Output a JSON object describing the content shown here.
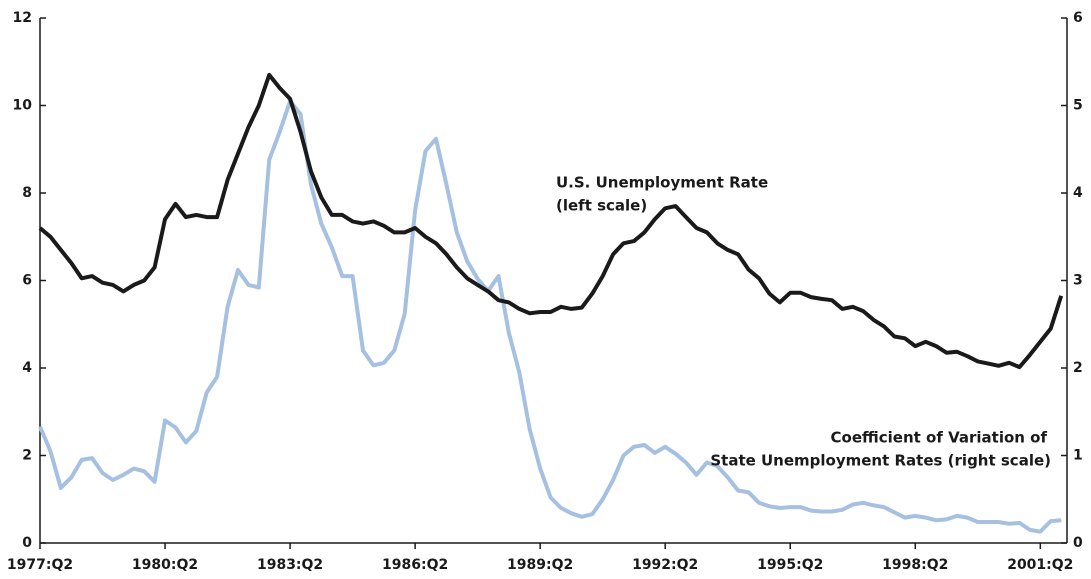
{
  "chart_data": {
    "type": "line",
    "annotations": [
      "U.S. Unemployment Rate",
      "(left scale)",
      "Coefficient of Variation of",
      "State Unemployment Rates (right scale)"
    ],
    "categories": [
      "1977:Q2",
      null,
      null,
      null,
      null,
      null,
      null,
      null,
      null,
      null,
      null,
      null,
      "1980:Q2",
      null,
      null,
      null,
      null,
      null,
      null,
      null,
      null,
      null,
      null,
      null,
      "1983:Q2",
      null,
      null,
      null,
      null,
      null,
      null,
      null,
      null,
      null,
      null,
      null,
      "1986:Q2",
      null,
      null,
      null,
      null,
      null,
      null,
      null,
      null,
      null,
      null,
      null,
      "1989:Q2",
      null,
      null,
      null,
      null,
      null,
      null,
      null,
      null,
      null,
      null,
      null,
      "1992:Q2",
      null,
      null,
      null,
      null,
      null,
      null,
      null,
      null,
      null,
      null,
      null,
      "1995:Q2",
      null,
      null,
      null,
      null,
      null,
      null,
      null,
      null,
      null,
      null,
      null,
      "1998:Q2",
      null,
      null,
      null,
      null,
      null,
      null,
      null,
      null,
      null,
      null,
      null,
      "2001:Q2",
      null,
      null
    ],
    "series": [
      {
        "name": "U.S. Unemployment Rate",
        "color": "#1a1a1a",
        "axis": "y",
        "values": [
          7.2,
          7.0,
          6.7,
          6.4,
          6.05,
          6.1,
          5.95,
          5.9,
          5.75,
          5.9,
          6.0,
          6.3,
          7.4,
          7.75,
          7.45,
          7.5,
          7.45,
          7.45,
          8.3,
          8.9,
          9.5,
          10.0,
          10.7,
          10.4,
          10.15,
          9.4,
          8.5,
          7.9,
          7.5,
          7.5,
          7.35,
          7.3,
          7.35,
          7.25,
          7.1,
          7.1,
          7.2,
          7.0,
          6.85,
          6.6,
          6.3,
          6.05,
          5.9,
          5.75,
          5.55,
          5.5,
          5.35,
          5.25,
          5.28,
          5.28,
          5.4,
          5.35,
          5.38,
          5.7,
          6.1,
          6.6,
          6.85,
          6.9,
          7.1,
          7.4,
          7.65,
          7.7,
          7.45,
          7.2,
          7.1,
          6.85,
          6.7,
          6.6,
          6.25,
          6.05,
          5.7,
          5.5,
          5.72,
          5.72,
          5.62,
          5.58,
          5.55,
          5.35,
          5.4,
          5.3,
          5.1,
          4.95,
          4.72,
          4.68,
          4.5,
          4.6,
          4.5,
          4.35,
          4.37,
          4.27,
          4.15,
          4.1,
          4.05,
          4.12,
          4.02,
          4.3,
          4.6,
          4.9,
          5.65
        ]
      },
      {
        "name": "Coefficient of Variation of State Unemployment Rates",
        "color": "#a5c0e0",
        "axis": "y2",
        "values": [
          1.33,
          1.05,
          0.63,
          0.75,
          0.95,
          0.97,
          0.8,
          0.72,
          0.78,
          0.85,
          0.82,
          0.7,
          1.4,
          1.32,
          1.15,
          1.28,
          1.72,
          1.9,
          2.7,
          3.12,
          2.95,
          2.92,
          4.38,
          4.7,
          5.05,
          4.9,
          4.1,
          3.65,
          3.38,
          3.05,
          3.05,
          2.2,
          2.03,
          2.06,
          2.2,
          2.62,
          3.8,
          4.48,
          4.62,
          4.1,
          3.55,
          3.22,
          3.02,
          2.88,
          3.05,
          2.4,
          1.95,
          1.3,
          0.85,
          0.52,
          0.4,
          0.34,
          0.3,
          0.33,
          0.5,
          0.72,
          1.0,
          1.1,
          1.12,
          1.03,
          1.1,
          1.02,
          0.92,
          0.78,
          0.92,
          0.88,
          0.75,
          0.6,
          0.58,
          0.46,
          0.42,
          0.4,
          0.41,
          0.41,
          0.37,
          0.36,
          0.36,
          0.38,
          0.44,
          0.46,
          0.43,
          0.41,
          0.35,
          0.29,
          0.31,
          0.29,
          0.26,
          0.27,
          0.31,
          0.29,
          0.24,
          0.24,
          0.24,
          0.22,
          0.23,
          0.15,
          0.13,
          0.25,
          0.26
        ]
      }
    ],
    "ylim": [
      0,
      12
    ],
    "yticks": [
      0,
      2,
      4,
      6,
      8,
      10,
      12
    ],
    "y2lim": [
      0,
      6
    ],
    "y2ticks": [
      0,
      1,
      2,
      3,
      4,
      5,
      6
    ]
  }
}
